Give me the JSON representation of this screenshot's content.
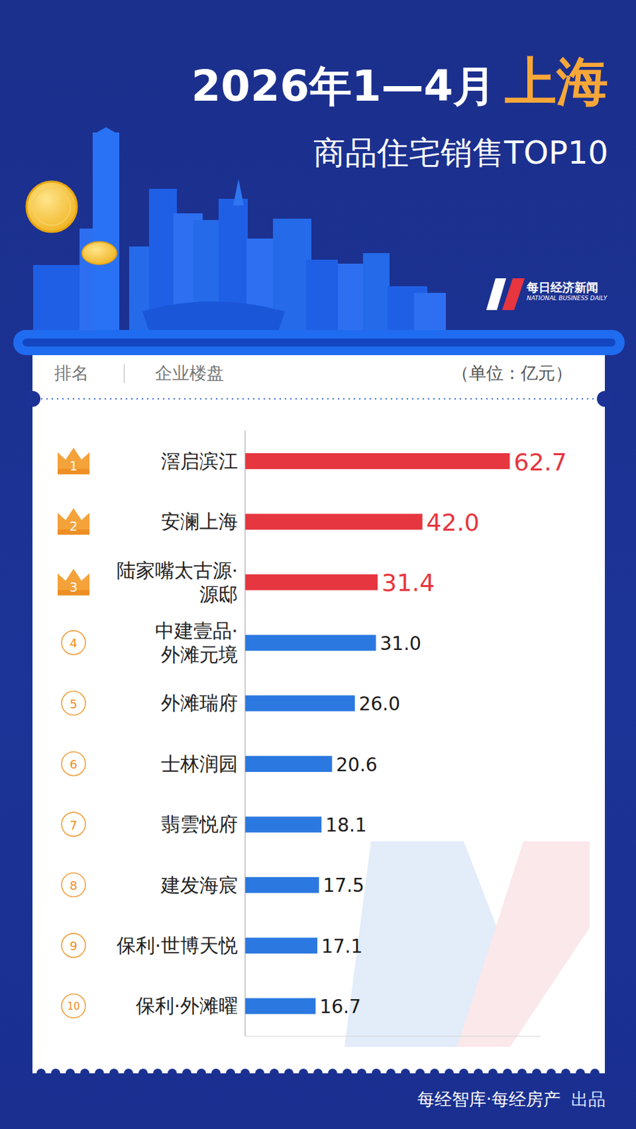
{
  "chart_data": {
    "type": "bar",
    "orientation": "horizontal",
    "title": "2026年1—4月 上海",
    "subtitle": "商品住宅销售TOP10",
    "categories": [
      "滘启滨江",
      "安澜上海",
      "陆家嘴太古源·源邸",
      "中建壹品·外滩元境",
      "外滩瑞府",
      "士林润园",
      "翡雲悦府",
      "建发海宸",
      "保利·世博天悦",
      "保利·外滩曜"
    ],
    "values": [
      62.7,
      42.0,
      31.4,
      31.0,
      26.0,
      20.6,
      18.1,
      17.5,
      17.1,
      16.7
    ],
    "value_labels": [
      "62.7",
      "42.0",
      "31.4",
      "31.0",
      "26.0",
      "20.6",
      "18.1",
      "17.5",
      "17.1",
      "16.7"
    ],
    "ranks": [
      1,
      2,
      3,
      4,
      5,
      6,
      7,
      8,
      9,
      10
    ],
    "colors": [
      "#e63640",
      "#e63640",
      "#e63640",
      "#2b78e0",
      "#2b78e0",
      "#2b78e0",
      "#2b78e0",
      "#2b78e0",
      "#2b78e0",
      "#2b78e0"
    ],
    "xlim": [
      0,
      70
    ],
    "grid": false,
    "data_labels": true,
    "tick_labels": "y",
    "annotations": {
      "rank_header": "排名",
      "name_header": "企业楼盘",
      "unit": "（单位：亿元）",
      "logo": "每日经济新闻",
      "logo_en": "NATIONAL BUSINESS DAILY",
      "source": "每经智库·每经房产",
      "credit": "出品"
    }
  }
}
